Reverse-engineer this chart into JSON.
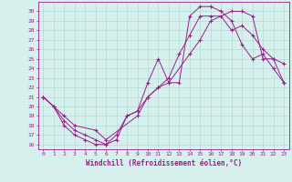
{
  "xlabel": "Windchill (Refroidissement éolien,°C)",
  "bg_color": "#d6f0ee",
  "line_color": "#9b1d8a",
  "grid_color": "#aad4d0",
  "xlim": [
    -0.5,
    23.5
  ],
  "ylim": [
    15.5,
    31.0
  ],
  "yticks": [
    16,
    17,
    18,
    19,
    20,
    21,
    22,
    23,
    24,
    25,
    26,
    27,
    28,
    29,
    30
  ],
  "xticks": [
    0,
    1,
    2,
    3,
    4,
    5,
    6,
    7,
    8,
    9,
    10,
    11,
    12,
    13,
    14,
    15,
    16,
    17,
    18,
    19,
    20,
    21,
    22,
    23
  ],
  "line1_x": [
    0,
    1,
    2,
    3,
    4,
    5,
    6,
    7,
    8,
    9,
    10,
    11,
    12,
    13,
    14,
    15,
    16,
    17,
    18,
    19,
    20,
    21,
    22,
    23
  ],
  "line1_y": [
    21.0,
    20.0,
    18.0,
    17.0,
    16.5,
    16.0,
    16.0,
    17.0,
    19.0,
    19.5,
    22.5,
    25.0,
    22.5,
    22.5,
    29.5,
    30.5,
    30.5,
    30.0,
    29.0,
    26.5,
    25.0,
    25.5,
    24.0,
    22.5
  ],
  "line2_x": [
    0,
    1,
    2,
    3,
    4,
    5,
    6,
    7,
    8,
    9,
    10,
    11,
    12,
    13,
    14,
    15,
    16,
    17,
    18,
    19,
    20,
    21,
    22,
    23
  ],
  "line2_y": [
    21.0,
    20.0,
    18.5,
    17.5,
    17.0,
    16.5,
    16.0,
    16.5,
    19.0,
    19.5,
    21.0,
    22.0,
    23.0,
    25.5,
    27.5,
    29.5,
    29.5,
    29.5,
    28.0,
    28.5,
    27.5,
    26.0,
    25.0,
    24.5
  ],
  "line3_x": [
    0,
    2,
    3,
    5,
    6,
    9,
    10,
    11,
    12,
    14,
    15,
    16,
    18,
    19,
    20,
    21,
    22,
    23
  ],
  "line3_y": [
    21.0,
    19.0,
    18.0,
    17.5,
    16.5,
    19.0,
    21.0,
    22.0,
    22.5,
    25.5,
    27.0,
    29.0,
    30.0,
    30.0,
    29.5,
    25.0,
    25.0,
    22.5
  ],
  "tick_fontsize": 4.5,
  "xlabel_fontsize": 5.5,
  "linewidth": 0.7,
  "markersize": 3.5
}
